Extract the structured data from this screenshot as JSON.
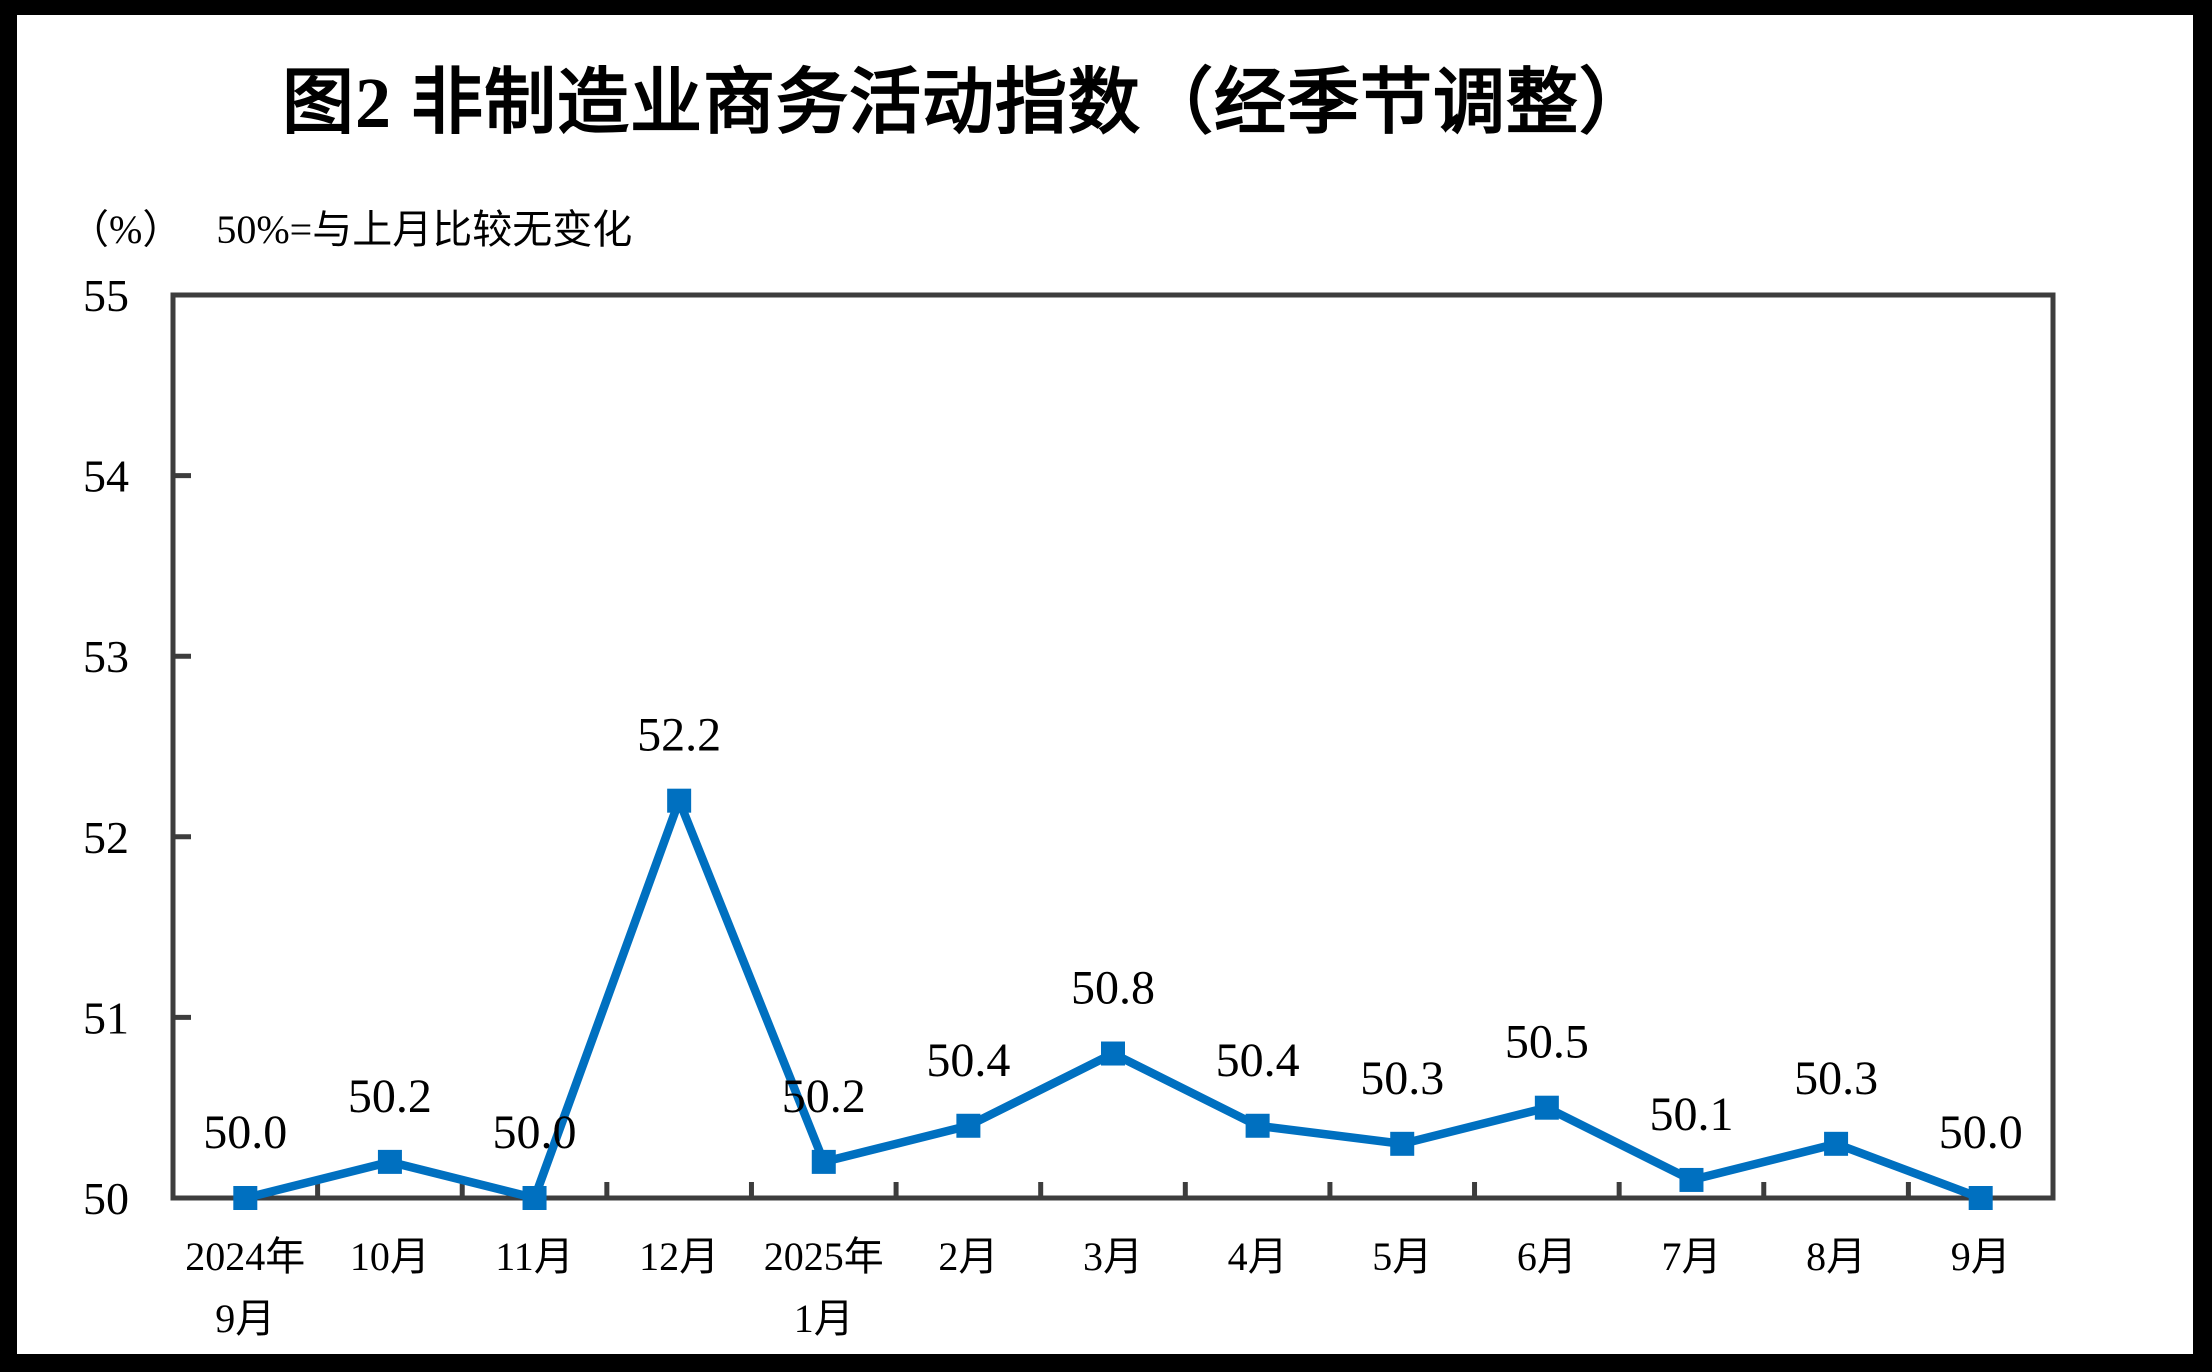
{
  "title": "图2 非制造业商务活动指数（经季节调整）",
  "subtitle": {
    "unit_label": "（%）",
    "note": "50%=与上月比较无变化"
  },
  "chart_data": {
    "type": "line",
    "title": "图2 非制造业商务活动指数（经季节调整）",
    "ylabel": "（%）",
    "annotation": "50%=与上月比较无变化",
    "categories": [
      [
        "2024年",
        "9月"
      ],
      [
        "10月"
      ],
      [
        "11月"
      ],
      [
        "12月"
      ],
      [
        "2025年",
        "1月"
      ],
      [
        "2月"
      ],
      [
        "3月"
      ],
      [
        "4月"
      ],
      [
        "5月"
      ],
      [
        "6月"
      ],
      [
        "7月"
      ],
      [
        "8月"
      ],
      [
        "9月"
      ]
    ],
    "values": [
      50.0,
      50.2,
      50.0,
      52.2,
      50.2,
      50.4,
      50.8,
      50.4,
      50.3,
      50.5,
      50.1,
      50.3,
      50.0
    ],
    "value_labels": [
      "50.0",
      "50.2",
      "50.0",
      "52.2",
      "50.2",
      "50.4",
      "50.8",
      "50.4",
      "50.3",
      "50.5",
      "50.1",
      "50.3",
      "50.0"
    ],
    "ylim": [
      50,
      55
    ],
    "y_ticks": [
      "50",
      "51",
      "52",
      "53",
      "54",
      "55"
    ],
    "grid": false,
    "legend": "none",
    "line_color": "#0070C0",
    "marker": "square",
    "axis_color": "#3d3d3d",
    "text_color": "#000000"
  }
}
